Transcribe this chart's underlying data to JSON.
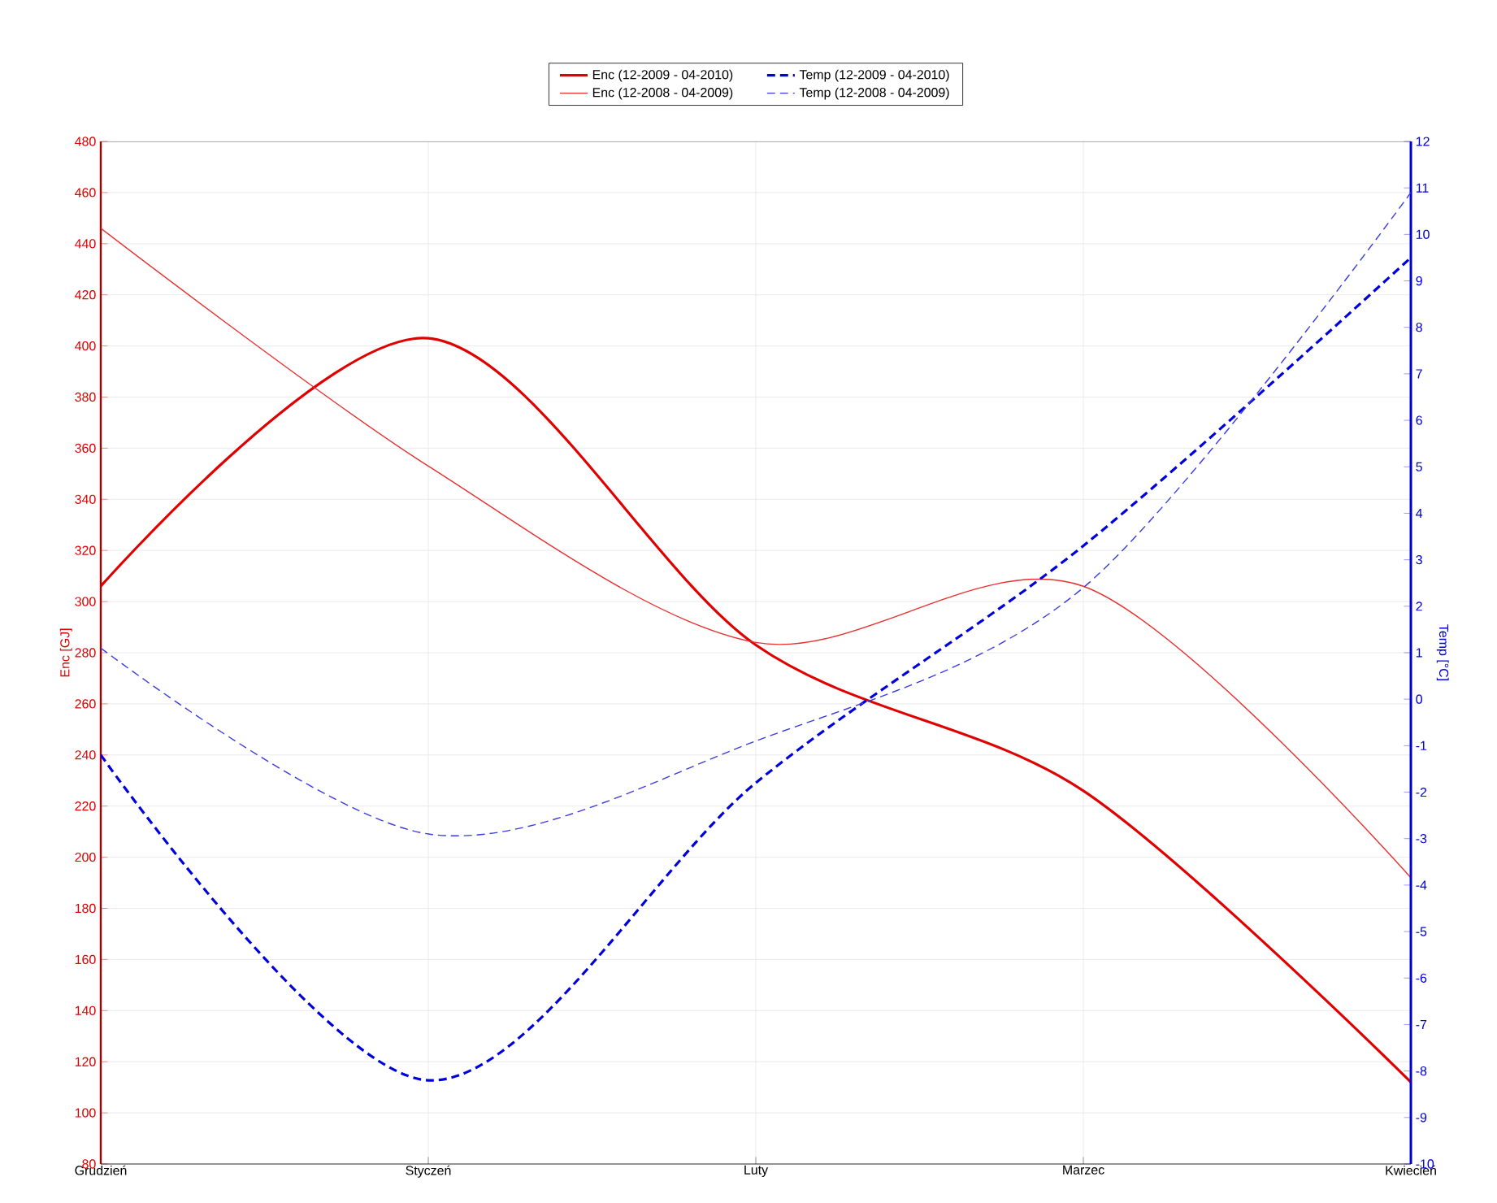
{
  "chart_data": {
    "type": "line",
    "categories": [
      "Grudzień",
      "Styczeń",
      "Luty",
      "Marzec",
      "Kwiecień"
    ],
    "ylabel": "Enc [GJ]",
    "y2label": "Temp [°C]",
    "ylim": [
      80,
      480
    ],
    "yticks": [
      80,
      100,
      120,
      140,
      160,
      180,
      200,
      220,
      240,
      260,
      280,
      300,
      320,
      340,
      360,
      380,
      400,
      420,
      440,
      460,
      480
    ],
    "y2lim": [
      -10,
      12
    ],
    "y2ticks": [
      -10,
      -9,
      -8,
      -7,
      -6,
      -5,
      -4,
      -3,
      -2,
      -1,
      0,
      1,
      2,
      3,
      4,
      5,
      6,
      7,
      8,
      9,
      10,
      11,
      12
    ],
    "grid": true,
    "legend": "top",
    "marker": "none",
    "series": [
      {
        "name": "Enc (12-2009 - 04-2010)",
        "color": "#e00000",
        "line_style": "solid",
        "values": [
          306,
          403,
          283,
          226,
          112
        ]
      },
      {
        "name": "Enc (12-2008 - 04-2009)",
        "color": "#e83030",
        "line_style": "solid",
        "values": [
          446,
          353,
          284,
          306,
          192
        ]
      },
      {
        "name": "Temp (12-2009 - 04-2010)",
        "color": "#0000dd",
        "line_style": "dashed",
        "axis": "y2",
        "values": [
          -1.2,
          -8.2,
          -1.8,
          3.3,
          9.5
        ]
      },
      {
        "name": "Temp (12-2008 - 04-2009)",
        "color": "#3a3ae0",
        "line_style": "dashed",
        "axis": "y2",
        "values": [
          1.1,
          -2.9,
          -0.9,
          2.4,
          10.9
        ]
      }
    ]
  }
}
